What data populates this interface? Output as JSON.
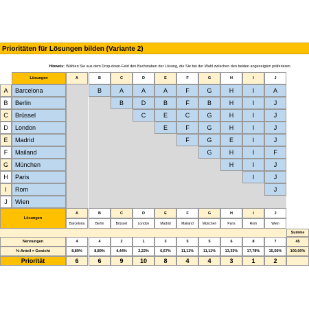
{
  "title": "Prioritäten für Lösungen bilden (Variante 2)",
  "hint_label": "Hinweis:",
  "hint_text": "Wählen Sie aus dem Drop-down-Feld den Buchstaben der Lösung, die Sie bei der Wahl zwischen den beiden angezeigten präferieren.",
  "loesungen_label": "Lösungen",
  "letters": [
    "A",
    "B",
    "C",
    "D",
    "E",
    "F",
    "G",
    "H",
    "I",
    "J"
  ],
  "cities": [
    "Barcelona",
    "Berlin",
    "Brüssel",
    "London",
    "Madrid",
    "Mailand",
    "München",
    "Paris",
    "Rom",
    "Wien"
  ],
  "matrix": [
    [
      "B",
      "A",
      "A",
      "A",
      "F",
      "G",
      "H",
      "I",
      "A"
    ],
    [
      "B",
      "D",
      "B",
      "F",
      "B",
      "H",
      "I",
      "J"
    ],
    [
      "C",
      "E",
      "C",
      "G",
      "H",
      "I",
      "J"
    ],
    [
      "E",
      "F",
      "G",
      "H",
      "I",
      "J"
    ],
    [
      "F",
      "G",
      "E",
      "I",
      "J"
    ],
    [
      "G",
      "H",
      "I",
      "F"
    ],
    [
      "H",
      "I",
      "J"
    ],
    [
      "I",
      "J"
    ],
    [
      "J"
    ]
  ],
  "summe_label": "Summe",
  "nennungen_label": "Nennungen",
  "nennungen": [
    "4",
    "4",
    "2",
    "1",
    "3",
    "5",
    "5",
    "6",
    "8",
    "7"
  ],
  "nennungen_total": "45",
  "anteil_label": "%-Anteil = Gewicht",
  "anteil": [
    "8,89%",
    "8,89%",
    "4,44%",
    "2,22%",
    "6,67%",
    "11,11%",
    "11,11%",
    "13,33%",
    "17,78%",
    "15,56%"
  ],
  "anteil_total": "100,00%",
  "prioritaet_label": "Priorität",
  "prioritaet": [
    "6",
    "6",
    "9",
    "10",
    "8",
    "4",
    "4",
    "3",
    "1",
    "2"
  ],
  "colors": {
    "accent": "#ffc000",
    "blue": "#bdd7ee",
    "gray": "#d9d9d9",
    "light_yellow": "#fff2cc"
  }
}
